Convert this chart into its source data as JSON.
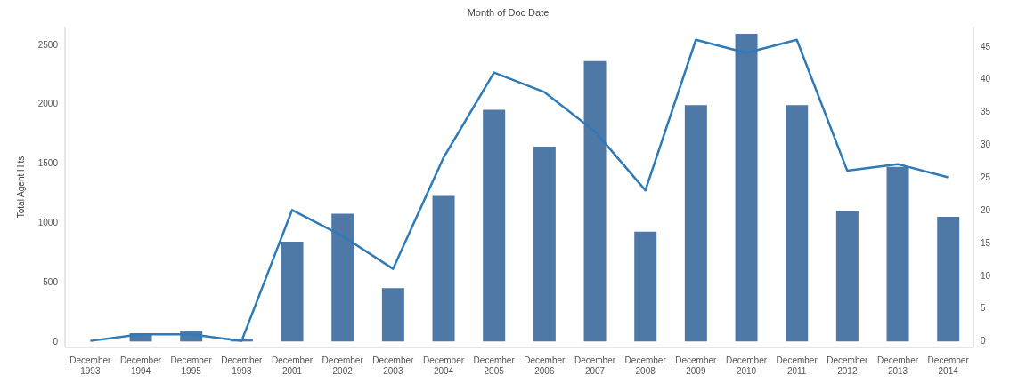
{
  "chart_data": {
    "type": "bar",
    "title": "Month of Doc Date",
    "ylabel": "Total Agent Hits",
    "categories": [
      "December 1993",
      "December 1994",
      "December 1995",
      "December 1998",
      "December 2001",
      "December 2002",
      "December 2003",
      "December 2004",
      "December 2005",
      "December 2006",
      "December 2007",
      "December 2008",
      "December 2009",
      "December 2010",
      "December 2011",
      "December 2012",
      "December 2013",
      "December 2014"
    ],
    "series": [
      {
        "color": "#4e79a7",
        "values": [
          null,
          70,
          90,
          25,
          840,
          1075,
          450,
          1225,
          1950,
          1640,
          2360,
          925,
          1990,
          2590,
          1990,
          1100,
          1470,
          1050
        ]
      },
      {
        "type": "line",
        "axis": "y2",
        "color": "#2f7ab8",
        "values": [
          0,
          1,
          1,
          0,
          20,
          16,
          11,
          28,
          41,
          38,
          32,
          23,
          46,
          44,
          46,
          26,
          27,
          25
        ]
      }
    ],
    "ylim": [
      -50,
      2650
    ],
    "yticks": [
      0,
      500,
      1000,
      1500,
      2000,
      2500
    ],
    "y2lim": [
      -1,
      48
    ],
    "y2ticks": [
      0,
      5,
      10,
      15,
      20,
      25,
      30,
      35,
      40,
      45
    ],
    "marker": "none",
    "line_style": "solid"
  }
}
